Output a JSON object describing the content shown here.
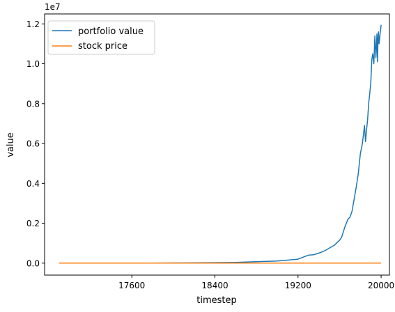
{
  "chart_data": {
    "type": "line",
    "xlabel": "timestep",
    "ylabel": "value",
    "y_offset_label": "1e7",
    "x_ticks": [
      17600,
      18400,
      19200,
      20000
    ],
    "x_tick_labels": [
      "17600",
      "18400",
      "19200",
      "20000"
    ],
    "y_ticks": [
      0,
      2000000,
      4000000,
      6000000,
      8000000,
      10000000,
      12000000
    ],
    "y_tick_labels": [
      "0.0",
      "0.2",
      "0.4",
      "0.6",
      "0.8",
      "1.0",
      "1.2"
    ],
    "xlim": [
      16760,
      20080
    ],
    "ylim": [
      -600000,
      12500000
    ],
    "grid": false,
    "legend_position": "top-left",
    "series": [
      {
        "name": "portfolio value",
        "color": "#1f77b4",
        "x": [
          16900,
          17200,
          17500,
          17800,
          18100,
          18400,
          18600,
          18800,
          19000,
          19100,
          19200,
          19250,
          19300,
          19350,
          19400,
          19450,
          19500,
          19550,
          19600,
          19620,
          19650,
          19680,
          19700,
          19720,
          19740,
          19760,
          19780,
          19800,
          19820,
          19840,
          19850,
          19860,
          19870,
          19880,
          19890,
          19900,
          19910,
          19920,
          19930,
          19940,
          19950,
          19960,
          19965,
          19970,
          19975,
          19980,
          19985,
          19990,
          19995,
          20000
        ],
        "y": [
          0,
          1000,
          3000,
          6000,
          12000,
          25000,
          40000,
          70000,
          110000,
          150000,
          200000,
          300000,
          400000,
          420000,
          500000,
          600000,
          750000,
          900000,
          1150000,
          1300000,
          1800000,
          2200000,
          2300000,
          2600000,
          3200000,
          3800000,
          4500000,
          5500000,
          6000000,
          6900000,
          6100000,
          6700000,
          7200000,
          8000000,
          8500000,
          9000000,
          10200000,
          10500000,
          10000000,
          11400000,
          10300000,
          11500000,
          10100000,
          11200000,
          11600000,
          11000000,
          11200000,
          11500000,
          11700000,
          11950000
        ]
      },
      {
        "name": "stock price",
        "color": "#ff7f0e",
        "x": [
          16900,
          20000
        ],
        "y": [
          0,
          0
        ]
      }
    ]
  }
}
